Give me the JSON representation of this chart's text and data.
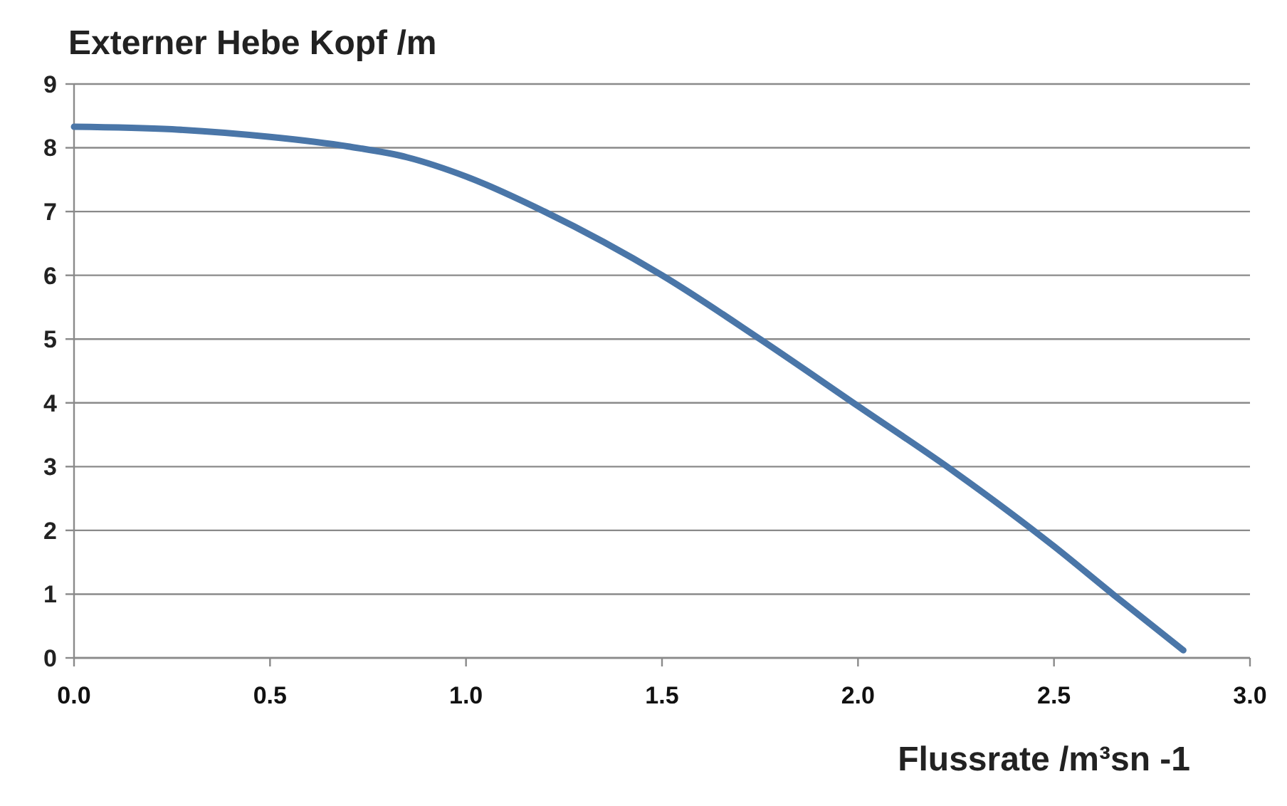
{
  "chart_data": {
    "type": "line",
    "ylabel": "Externer Hebe Kopf /m",
    "xlabel": "Flussrate /m³sn -1",
    "x": [
      0,
      0.25,
      0.5,
      0.7,
      0.85,
      1.0,
      1.2,
      1.5,
      1.75,
      2.0,
      2.25,
      2.5,
      2.65,
      2.83
    ],
    "series": [
      {
        "color": "#4a76a8",
        "values": [
          8.33,
          8.29,
          8.17,
          8.02,
          7.85,
          7.55,
          7.0,
          6.0,
          5.0,
          3.95,
          2.9,
          1.75,
          1.0,
          0.12
        ]
      }
    ],
    "xlim": [
      0,
      3
    ],
    "xticks": [
      {
        "value": 0,
        "label": "0.0"
      },
      {
        "value": 0.5,
        "label": "0.5"
      },
      {
        "value": 1,
        "label": "1.0"
      },
      {
        "value": 1.5,
        "label": "1.5"
      },
      {
        "value": 2,
        "label": "2.0"
      },
      {
        "value": 2.5,
        "label": "2.5"
      },
      {
        "value": 3,
        "label": "3.0"
      }
    ],
    "ylim": [
      0,
      9
    ],
    "yticks": [
      0,
      1,
      2,
      3,
      4,
      5,
      6,
      7,
      8,
      9
    ],
    "grid": "y",
    "marker": "none",
    "line_style": "solid"
  }
}
